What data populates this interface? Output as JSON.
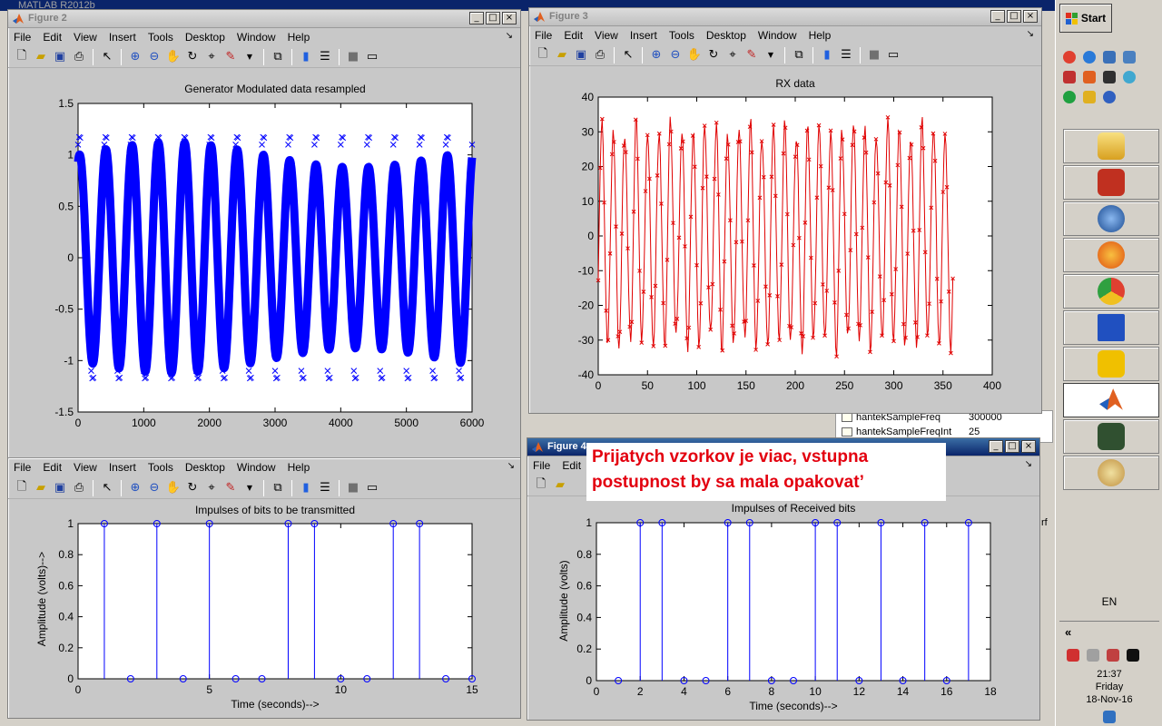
{
  "background": {
    "matlab_title": "MATLAB R2012b",
    "workspace": [
      {
        "name": "hantekSampleFreq",
        "value": "300000"
      },
      {
        "name": "hantekSampleFreqInt",
        "value": "25"
      }
    ],
    "fragment_char": "rf"
  },
  "menu": [
    "File",
    "Edit",
    "View",
    "Insert",
    "Tools",
    "Desktop",
    "Window",
    "Help"
  ],
  "menu_short": [
    "File",
    "Edit"
  ],
  "win_btns": {
    "minimize": "_",
    "maximize": "□",
    "close": "×"
  },
  "dock_glyph": "↘",
  "toolbar_icons": [
    "new-file-icon",
    "open-folder-icon",
    "save-icon",
    "print-icon",
    "select-arrow-icon",
    "zoom-in-icon",
    "zoom-out-icon",
    "pan-hand-icon",
    "rotate-3d-icon",
    "data-cursor-icon",
    "brush-icon",
    "link-plot-icon",
    "colorbar-icon",
    "legend-icon",
    "hide-tools-icon",
    "show-tools-icon"
  ],
  "figure2": {
    "title": "Figure 2",
    "top_plot": {
      "title": "Generator Modulated data resampled",
      "color": "#0000ff"
    },
    "bottom_plot": {
      "title": "Impulses of bits to be transmitted",
      "xlabel": "Time (seconds)-->",
      "ylabel": "Amplitude (volts)-->",
      "color": "#0000ff"
    }
  },
  "figure3": {
    "title": "Figure 3",
    "plot": {
      "title": "RX data",
      "color": "#e00000"
    }
  },
  "figure4": {
    "title": "Figure 4",
    "plot": {
      "title": "Impulses of Received bits",
      "xlabel": "Time (seconds)-->",
      "ylabel": "Amplitude (volts)",
      "color": "#0000ff"
    }
  },
  "annotation": {
    "line1": "Prijatych vzorkov je viac, vstupna",
    "line2": "postupnost by sa mala opakovat’"
  },
  "taskbar": {
    "start_label": "Start",
    "language": "EN",
    "expand_glyph": "«",
    "time": "21:37",
    "day": "Friday",
    "date": "18-Nov-16"
  },
  "chart_data": [
    {
      "type": "line",
      "title": "Generator Modulated data resampled",
      "xlim": [
        0,
        6000
      ],
      "ylim": [
        -1.5,
        1.5
      ],
      "xticks": [
        0,
        1000,
        2000,
        3000,
        4000,
        5000,
        6000
      ],
      "yticks": [
        -1.5,
        -1,
        -0.5,
        0,
        0.5,
        1,
        1.5
      ],
      "ytick_labels": [
        "-1.5",
        "-1",
        "-0.5",
        "0",
        "0.5",
        "1",
        "1.5"
      ],
      "series": [
        {
          "name": "signal",
          "marker": "x",
          "cycles": 15,
          "amplitude": 1.0,
          "x_end": 6000
        }
      ]
    },
    {
      "type": "line",
      "title": "RX data",
      "xlim": [
        0,
        400
      ],
      "ylim": [
        -40,
        40
      ],
      "xticks": [
        0,
        50,
        100,
        150,
        200,
        250,
        300,
        350,
        400
      ],
      "yticks": [
        -40,
        -30,
        -20,
        -10,
        0,
        10,
        20,
        30,
        40
      ],
      "series": [
        {
          "name": "rx",
          "marker": "x",
          "cycles": 31,
          "amplitude": 31,
          "x_start": 0,
          "x_end": 360,
          "samples": 360
        }
      ]
    },
    {
      "type": "stem",
      "title": "Impulses of bits to be transmitted",
      "xlabel": "Time (seconds)-->",
      "ylabel": "Amplitude (volts)-->",
      "xlim": [
        0,
        15
      ],
      "ylim": [
        0,
        1
      ],
      "xticks": [
        0,
        5,
        10,
        15
      ],
      "yticks": [
        0,
        0.2,
        0.4,
        0.6,
        0.8,
        1
      ],
      "x": [
        1,
        2,
        3,
        4,
        5,
        6,
        7,
        8,
        9,
        10,
        11,
        12,
        13,
        14,
        15
      ],
      "y": [
        1,
        0,
        1,
        0,
        1,
        0,
        0,
        1,
        1,
        0,
        0,
        1,
        1,
        0,
        0
      ]
    },
    {
      "type": "stem",
      "title": "Impulses of Received bits",
      "xlabel": "Time (seconds)-->",
      "ylabel": "Amplitude (volts)",
      "xlim": [
        0,
        18
      ],
      "ylim": [
        0,
        1
      ],
      "xticks": [
        0,
        2,
        4,
        6,
        8,
        10,
        12,
        14,
        16,
        18
      ],
      "yticks": [
        0,
        0.2,
        0.4,
        0.6,
        0.8,
        1
      ],
      "x": [
        1,
        2,
        3,
        4,
        5,
        6,
        7,
        8,
        9,
        10,
        11,
        12,
        13,
        14,
        15,
        16,
        17
      ],
      "y": [
        0,
        1,
        1,
        0,
        0,
        1,
        1,
        0,
        0,
        1,
        1,
        0,
        1,
        0,
        1,
        0,
        1
      ]
    }
  ]
}
